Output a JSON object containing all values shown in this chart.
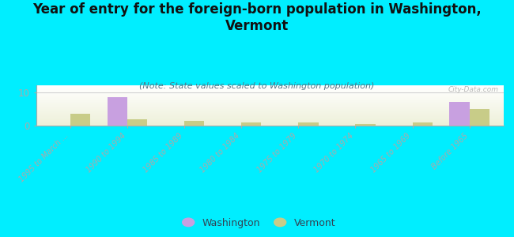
{
  "title": "Year of entry for the foreign-born population in Washington,\nVermont",
  "subtitle": "(Note: State values scaled to Washington population)",
  "categories": [
    "1995 to March ...",
    "1990 to 1994",
    "1985 to 1989",
    "1980 to 1984",
    "1975 to 1979",
    "1970 to 1974",
    "1965 to 1969",
    "Before 1965"
  ],
  "washington_values": [
    0,
    8.5,
    0,
    0,
    0,
    0,
    0,
    7.0
  ],
  "vermont_values": [
    3.5,
    1.8,
    1.3,
    1.0,
    1.0,
    0.5,
    1.0,
    5.0
  ],
  "washington_color": "#c8a0e0",
  "vermont_color": "#c8cc88",
  "background_color": "#00eeff",
  "bar_width": 0.35,
  "ylim": [
    0,
    12
  ],
  "yticks": [
    0,
    10
  ],
  "watermark": "City-Data.com",
  "legend_washington": "Washington",
  "legend_vermont": "Vermont",
  "title_fontsize": 12,
  "subtitle_fontsize": 8,
  "tick_label_color": "#557788",
  "title_color": "#111111",
  "subtitle_color": "#557788"
}
